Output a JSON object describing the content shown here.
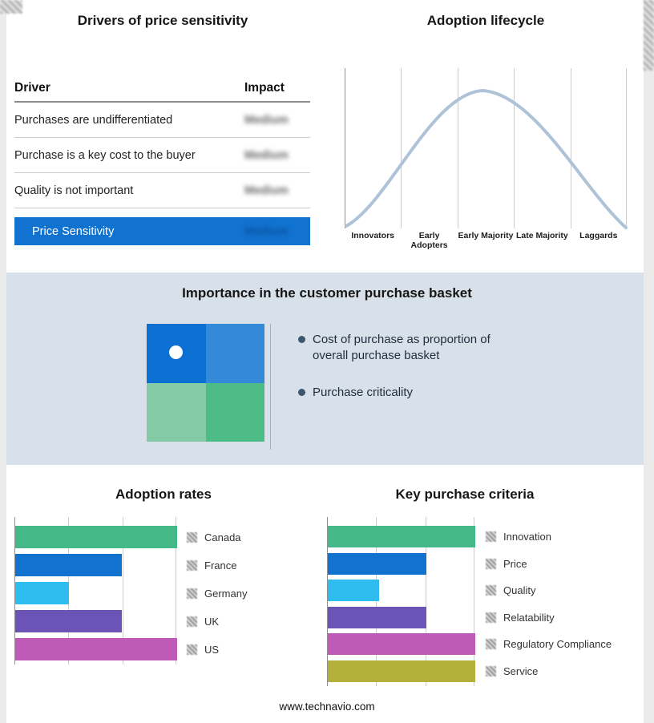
{
  "page": {
    "footer_url": "www.technavio.com"
  },
  "drivers_panel": {
    "title": "Drivers of price sensitivity",
    "columns": {
      "driver": "Driver",
      "impact": "Impact"
    },
    "rows": [
      {
        "driver": "Purchases are undifferentiated",
        "impact": "Medium"
      },
      {
        "driver": "Purchase is a key cost to the buyer",
        "impact": "Medium"
      },
      {
        "driver": "Quality is not important",
        "impact": "Medium"
      }
    ],
    "summary": {
      "label": "Price Sensitivity",
      "impact": "Medium"
    },
    "accent_color": "#1173cf",
    "impact_values_redacted": true
  },
  "lifecycle_panel": {
    "title": "Adoption lifecycle",
    "stages": [
      "Innovators",
      "Early Adopters",
      "Early Majority",
      "Late Majority",
      "Laggards"
    ],
    "curve_color": "#aec3d8"
  },
  "basket_panel": {
    "title": "Importance in the customer purchase basket",
    "bullets": [
      "Cost of purchase as proportion of overall purchase basket",
      "Purchase criticality"
    ],
    "quadrant_colors": {
      "top_left": "#0b70d1",
      "top_right": "#3489d8",
      "bottom_left": "#84cba5",
      "bottom_right": "#4dbc87"
    }
  },
  "chart_data": [
    {
      "type": "bar",
      "orientation": "horizontal",
      "title": "Adoption rates",
      "categories": [
        "Canada",
        "France",
        "Germany",
        "UK",
        "US"
      ],
      "values": [
        100,
        66,
        33,
        66,
        100
      ],
      "colors": [
        "#45b887",
        "#1173cf",
        "#2fbdf0",
        "#6b54b5",
        "#c05ab8"
      ],
      "axis_range": [
        0,
        100
      ],
      "grid": true,
      "legend_position": "right",
      "note": "axis unlabeled; bar lengths estimated from gridlines as % of axis span"
    },
    {
      "type": "bar",
      "orientation": "horizontal",
      "title": "Key purchase criteria",
      "categories": [
        "Innovation",
        "Price",
        "Quality",
        "Relatability",
        "Regulatory Compliance",
        "Service"
      ],
      "values": [
        100,
        67,
        35,
        67,
        100,
        100
      ],
      "colors": [
        "#45b887",
        "#1173cf",
        "#2fbdf0",
        "#6b54b5",
        "#c05ab8",
        "#b4b13b"
      ],
      "axis_range": [
        0,
        100
      ],
      "grid": true,
      "legend_position": "right",
      "note": "axis unlabeled; bar lengths estimated from gridlines as % of axis span"
    }
  ]
}
